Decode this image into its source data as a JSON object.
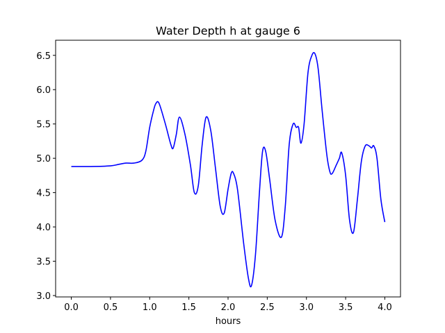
{
  "chart_data": {
    "type": "line",
    "title": "Water Depth h at gauge 6",
    "xlabel": "hours",
    "ylabel": "",
    "xlim": [
      -0.2,
      4.2
    ],
    "ylim": [
      2.98,
      6.72
    ],
    "xticks": [
      0.0,
      0.5,
      1.0,
      1.5,
      2.0,
      2.5,
      3.0,
      3.5,
      4.0
    ],
    "xtick_labels": [
      "0.0",
      "0.5",
      "1.0",
      "1.5",
      "2.0",
      "2.5",
      "3.0",
      "3.5",
      "4.0"
    ],
    "yticks": [
      3.0,
      3.5,
      4.0,
      4.5,
      5.0,
      5.5,
      6.0,
      6.5
    ],
    "ytick_labels": [
      "3.0",
      "3.5",
      "4.0",
      "4.5",
      "5.0",
      "5.5",
      "6.0",
      "6.5"
    ],
    "grid": false,
    "legend": null,
    "series": [
      {
        "color": "#0000ff",
        "x": [
          0.0,
          0.25,
          0.5,
          0.6,
          0.7,
          0.8,
          0.9,
          0.95,
          1.0,
          1.05,
          1.08,
          1.12,
          1.2,
          1.27,
          1.3,
          1.34,
          1.38,
          1.45,
          1.52,
          1.57,
          1.62,
          1.67,
          1.72,
          1.78,
          1.84,
          1.9,
          1.95,
          2.0,
          2.04,
          2.07,
          2.12,
          2.2,
          2.26,
          2.3,
          2.35,
          2.4,
          2.44,
          2.48,
          2.53,
          2.6,
          2.68,
          2.73,
          2.78,
          2.83,
          2.87,
          2.9,
          2.93,
          2.97,
          3.02,
          3.07,
          3.11,
          3.15,
          3.2,
          3.26,
          3.3,
          3.33,
          3.38,
          3.42,
          3.45,
          3.5,
          3.55,
          3.6,
          3.65,
          3.7,
          3.75,
          3.8,
          3.83,
          3.86,
          3.9,
          3.95,
          4.0
        ],
        "y": [
          4.88,
          4.88,
          4.89,
          4.91,
          4.93,
          4.93,
          4.97,
          5.1,
          5.45,
          5.7,
          5.8,
          5.8,
          5.5,
          5.2,
          5.15,
          5.35,
          5.6,
          5.35,
          4.9,
          4.5,
          4.6,
          5.2,
          5.6,
          5.4,
          4.85,
          4.3,
          4.2,
          4.55,
          4.78,
          4.78,
          4.55,
          3.75,
          3.25,
          3.15,
          3.6,
          4.5,
          5.1,
          5.1,
          4.7,
          4.1,
          3.85,
          4.3,
          5.2,
          5.5,
          5.45,
          5.45,
          5.22,
          5.5,
          6.25,
          6.5,
          6.52,
          6.3,
          5.7,
          5.05,
          4.8,
          4.78,
          4.9,
          5.0,
          5.08,
          4.75,
          4.1,
          3.92,
          4.4,
          4.95,
          5.18,
          5.18,
          5.15,
          5.18,
          5.0,
          4.4,
          4.07
        ]
      }
    ]
  }
}
